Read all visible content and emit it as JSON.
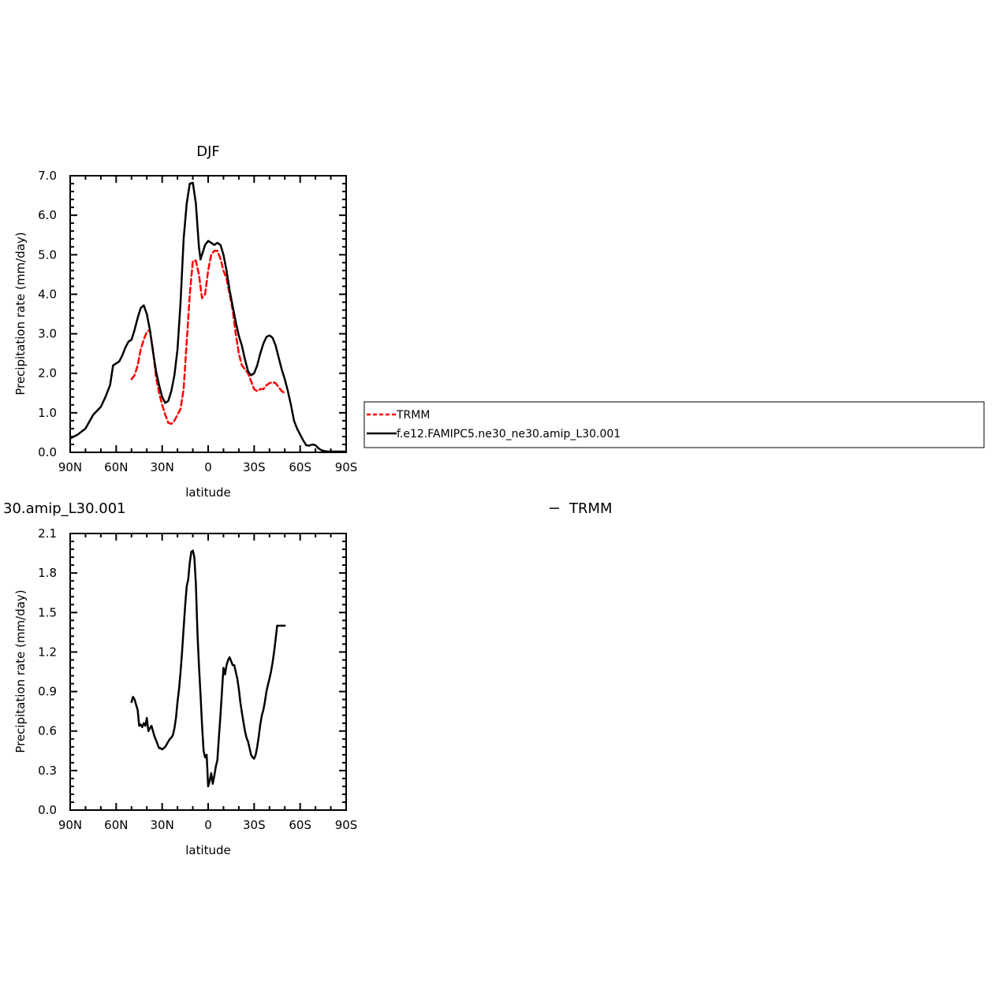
{
  "chart_data": [
    {
      "type": "line",
      "title": "DJF",
      "xlabel": "latitude",
      "ylabel": "Precipitation rate (mm/day)",
      "xlim": [
        -90,
        90
      ],
      "ylim": [
        0,
        7
      ],
      "xticks": [
        -90,
        -60,
        -30,
        0,
        30,
        60,
        90
      ],
      "xtick_labels": [
        "90N",
        "60N",
        "30N",
        "0",
        "30S",
        "60S",
        "90S"
      ],
      "yticks": [
        0,
        1,
        2,
        3,
        4,
        5,
        6,
        7
      ],
      "ytick_labels": [
        "0.0",
        "1.0",
        "2.0",
        "3.0",
        "4.0",
        "5.0",
        "6.0",
        "7.0"
      ],
      "grid": false,
      "legend": {
        "placement": "right",
        "entries": [
          "TRMM",
          "f.e12.FAMIPC5.ne30_ne30.amip_L30.001"
        ]
      },
      "series": [
        {
          "name": "TRMM",
          "color": "#ff0000",
          "style": "dashed",
          "x": [
            -50,
            -48,
            -46,
            -44,
            -42,
            -40,
            -38,
            -36,
            -34,
            -32,
            -30,
            -28,
            -26,
            -24,
            -22,
            -20,
            -18,
            -16,
            -14,
            -12,
            -10,
            -8,
            -6,
            -4,
            -2,
            0,
            2,
            4,
            6,
            8,
            10,
            12,
            14,
            16,
            18,
            20,
            22,
            24,
            26,
            28,
            30,
            32,
            34,
            36,
            38,
            40,
            42,
            44,
            46,
            48,
            50
          ],
          "y": [
            1.85,
            1.95,
            2.2,
            2.6,
            2.85,
            3.05,
            3.1,
            2.6,
            1.9,
            1.5,
            1.2,
            0.95,
            0.75,
            0.72,
            0.8,
            0.95,
            1.1,
            1.6,
            2.8,
            4.0,
            4.85,
            4.85,
            4.5,
            3.9,
            4.0,
            4.6,
            5.0,
            5.1,
            5.1,
            4.9,
            4.6,
            4.4,
            4.0,
            3.6,
            3.0,
            2.5,
            2.2,
            2.1,
            2.0,
            1.8,
            1.6,
            1.55,
            1.6,
            1.6,
            1.7,
            1.75,
            1.78,
            1.75,
            1.65,
            1.55,
            1.5
          ]
        },
        {
          "name": "f.e12.FAMIPC5.ne30_ne30.amip_L30.001",
          "color": "#000000",
          "style": "solid",
          "x": [
            -90,
            -85,
            -80,
            -75,
            -70,
            -67,
            -64,
            -62,
            -60,
            -58,
            -56,
            -54,
            -52,
            -50,
            -48,
            -46,
            -44,
            -42,
            -40,
            -38,
            -36,
            -34,
            -32,
            -30,
            -28,
            -26,
            -24,
            -22,
            -20,
            -18,
            -16,
            -14,
            -12,
            -10,
            -8,
            -6,
            -5,
            -4,
            -2,
            0,
            2,
            4,
            6,
            8,
            10,
            12,
            14,
            16,
            18,
            20,
            22,
            24,
            26,
            28,
            30,
            32,
            34,
            36,
            38,
            40,
            42,
            44,
            46,
            48,
            50,
            52,
            54,
            56,
            58,
            60,
            62,
            64,
            66,
            68,
            70,
            72,
            74,
            76,
            78,
            80,
            82,
            84,
            86,
            88,
            90
          ],
          "y": [
            0.35,
            0.45,
            0.6,
            0.95,
            1.15,
            1.4,
            1.7,
            2.2,
            2.25,
            2.3,
            2.45,
            2.65,
            2.8,
            2.85,
            3.1,
            3.4,
            3.65,
            3.72,
            3.5,
            3.1,
            2.55,
            2.05,
            1.7,
            1.4,
            1.25,
            1.3,
            1.55,
            1.95,
            2.6,
            3.8,
            5.4,
            6.3,
            6.8,
            6.82,
            6.3,
            5.2,
            4.88,
            5.0,
            5.25,
            5.35,
            5.3,
            5.25,
            5.3,
            5.25,
            5.0,
            4.6,
            4.1,
            3.7,
            3.3,
            2.95,
            2.7,
            2.35,
            2.05,
            1.95,
            2.0,
            2.2,
            2.5,
            2.75,
            2.92,
            2.96,
            2.9,
            2.7,
            2.4,
            2.1,
            1.85,
            1.55,
            1.2,
            0.8,
            0.6,
            0.45,
            0.3,
            0.18,
            0.17,
            0.2,
            0.18,
            0.1,
            0.05,
            0.03,
            0.02,
            0.02,
            0.02,
            0.02,
            0.02,
            0.02,
            0.02
          ]
        }
      ]
    },
    {
      "type": "line",
      "title": "30.amip_L30.001",
      "xlabel": "latitude",
      "ylabel": "Precipitation rate (mm/day)",
      "xlim": [
        -90,
        90
      ],
      "ylim": [
        0,
        2.1
      ],
      "xticks": [
        -90,
        -60,
        -30,
        0,
        30,
        60,
        90
      ],
      "xtick_labels": [
        "90N",
        "60N",
        "30N",
        "0",
        "30S",
        "60S",
        "90S"
      ],
      "yticks": [
        0,
        0.3,
        0.6,
        0.9,
        1.2,
        1.5,
        1.8,
        2.1
      ],
      "ytick_labels": [
        "0.0",
        "0.3",
        "0.6",
        "0.9",
        "1.2",
        "1.5",
        "1.8",
        "2.1"
      ],
      "grid": false,
      "legend": {
        "placement": "top-right",
        "entries": [
          "TRMM"
        ]
      },
      "series": [
        {
          "color": "#000000",
          "style": "solid",
          "x": [
            -50,
            -49,
            -48,
            -47,
            -46,
            -45,
            -44,
            -43,
            -42,
            -41,
            -40,
            -39,
            -38,
            -37,
            -36,
            -35,
            -34,
            -33,
            -32,
            -31,
            -30,
            -29,
            -28,
            -27,
            -26,
            -25,
            -24,
            -23,
            -22,
            -21,
            -20,
            -19,
            -18,
            -17,
            -16,
            -15,
            -14,
            -13,
            -12,
            -11,
            -10,
            -9,
            -8,
            -7,
            -6,
            -5,
            -4,
            -3,
            -2,
            -1,
            0,
            1,
            2,
            3,
            4,
            5,
            6,
            7,
            8,
            9,
            10,
            11,
            12,
            13,
            14,
            15,
            16,
            17,
            18,
            19,
            20,
            21,
            22,
            23,
            24,
            25,
            26,
            27,
            28,
            29,
            30,
            31,
            32,
            33,
            34,
            35,
            36,
            37,
            38,
            39,
            40,
            41,
            42,
            43,
            44,
            45,
            46,
            47,
            48,
            49,
            50
          ],
          "y": [
            0.82,
            0.86,
            0.84,
            0.8,
            0.76,
            0.64,
            0.65,
            0.63,
            0.66,
            0.64,
            0.7,
            0.6,
            0.62,
            0.64,
            0.6,
            0.56,
            0.53,
            0.5,
            0.47,
            0.47,
            0.46,
            0.47,
            0.48,
            0.5,
            0.52,
            0.54,
            0.55,
            0.57,
            0.62,
            0.7,
            0.82,
            0.92,
            1.05,
            1.2,
            1.38,
            1.55,
            1.7,
            1.75,
            1.88,
            1.96,
            1.97,
            1.92,
            1.72,
            1.35,
            1.1,
            0.88,
            0.65,
            0.45,
            0.4,
            0.42,
            0.18,
            0.22,
            0.28,
            0.2,
            0.26,
            0.33,
            0.38,
            0.55,
            0.72,
            0.9,
            1.08,
            1.03,
            1.1,
            1.14,
            1.16,
            1.13,
            1.1,
            1.1,
            1.05,
            1.0,
            0.92,
            0.82,
            0.74,
            0.67,
            0.6,
            0.55,
            0.52,
            0.47,
            0.42,
            0.4,
            0.39,
            0.42,
            0.48,
            0.56,
            0.65,
            0.72,
            0.76,
            0.82,
            0.9,
            0.95,
            1.0,
            1.05,
            1.12,
            1.2,
            1.3,
            1.4,
            1.4,
            1.4,
            1.4,
            1.4,
            1.4
          ]
        }
      ]
    }
  ]
}
